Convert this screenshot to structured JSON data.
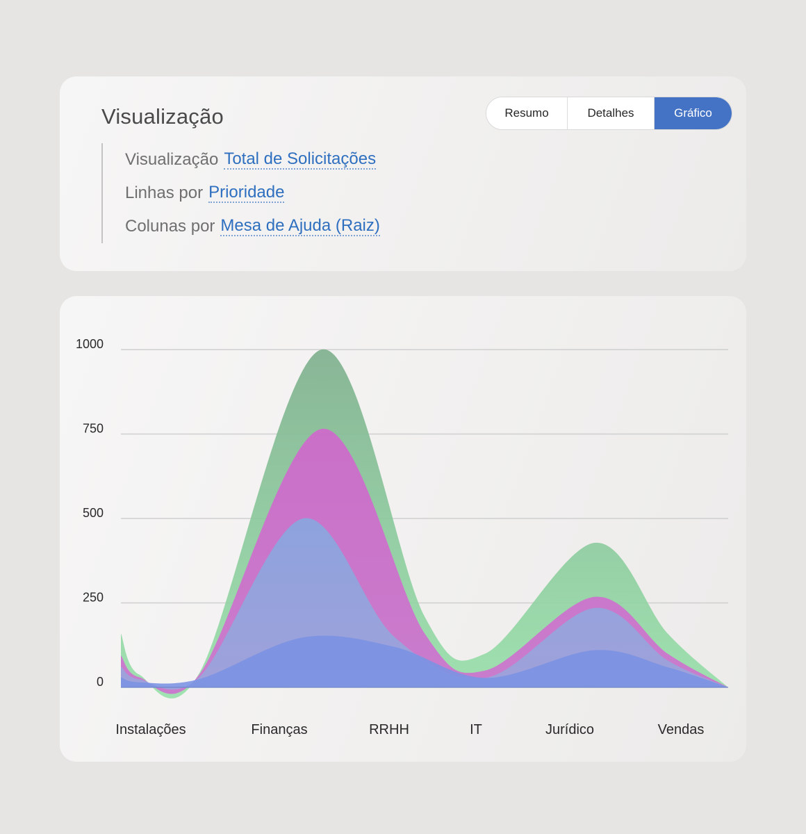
{
  "config": {
    "title": "Visualização",
    "tabs": [
      {
        "label": "Resumo",
        "active": false
      },
      {
        "label": "Detalhes",
        "active": false
      },
      {
        "label": "Gráfico",
        "active": true
      }
    ],
    "rows": [
      {
        "prefix": "Visualização",
        "value": "Total de Solicitações"
      },
      {
        "prefix": "Linhas por",
        "value": "Prioridade"
      },
      {
        "prefix": "Colunas por",
        "value": "Mesa de Ajuda (Raiz)"
      }
    ]
  },
  "colors": {
    "accent": "#4472c4",
    "link": "#2f6fbf",
    "series": [
      "#7b93e3",
      "#9aa6dc",
      "#cf6fd0",
      "#95e0a8"
    ],
    "series_top": [
      "#7b93e3",
      "#88a7df",
      "#d068cc",
      "#7fb08e"
    ]
  },
  "chart_data": {
    "type": "area",
    "stacked": false,
    "smooth": true,
    "x": [
      0,
      0.23,
      0.45,
      0.65,
      0.785,
      1.0
    ],
    "categories": [
      "Instalações",
      "Finanças",
      "RRHH",
      "IT",
      "Jurídico",
      "Vendas"
    ],
    "ylim": [
      0,
      1000
    ],
    "yticks": [
      0,
      250,
      500,
      750,
      1000
    ],
    "grid": true,
    "series": [
      {
        "points": [
          [
            0.0,
            30
          ],
          [
            0.03,
            15
          ],
          [
            0.13,
            25
          ],
          [
            0.3,
            148
          ],
          [
            0.45,
            120
          ],
          [
            0.6,
            28
          ],
          [
            0.78,
            110
          ],
          [
            0.9,
            60
          ],
          [
            1.0,
            0
          ]
        ]
      },
      {
        "points": [
          [
            0.0,
            62
          ],
          [
            0.03,
            24
          ],
          [
            0.13,
            32
          ],
          [
            0.3,
            500
          ],
          [
            0.45,
            150
          ],
          [
            0.6,
            28
          ],
          [
            0.78,
            235
          ],
          [
            0.9,
            80
          ],
          [
            1.0,
            0
          ]
        ]
      },
      {
        "points": [
          [
            0.0,
            95
          ],
          [
            0.03,
            30
          ],
          [
            0.13,
            40
          ],
          [
            0.33,
            765
          ],
          [
            0.5,
            160
          ],
          [
            0.6,
            50
          ],
          [
            0.78,
            268
          ],
          [
            0.9,
            100
          ],
          [
            1.0,
            0
          ]
        ]
      },
      {
        "points": [
          [
            0.0,
            160
          ],
          [
            0.03,
            38
          ],
          [
            0.13,
            45
          ],
          [
            0.33,
            1000
          ],
          [
            0.5,
            210
          ],
          [
            0.6,
            100
          ],
          [
            0.78,
            428
          ],
          [
            0.9,
            160
          ],
          [
            1.0,
            0
          ]
        ]
      }
    ]
  }
}
